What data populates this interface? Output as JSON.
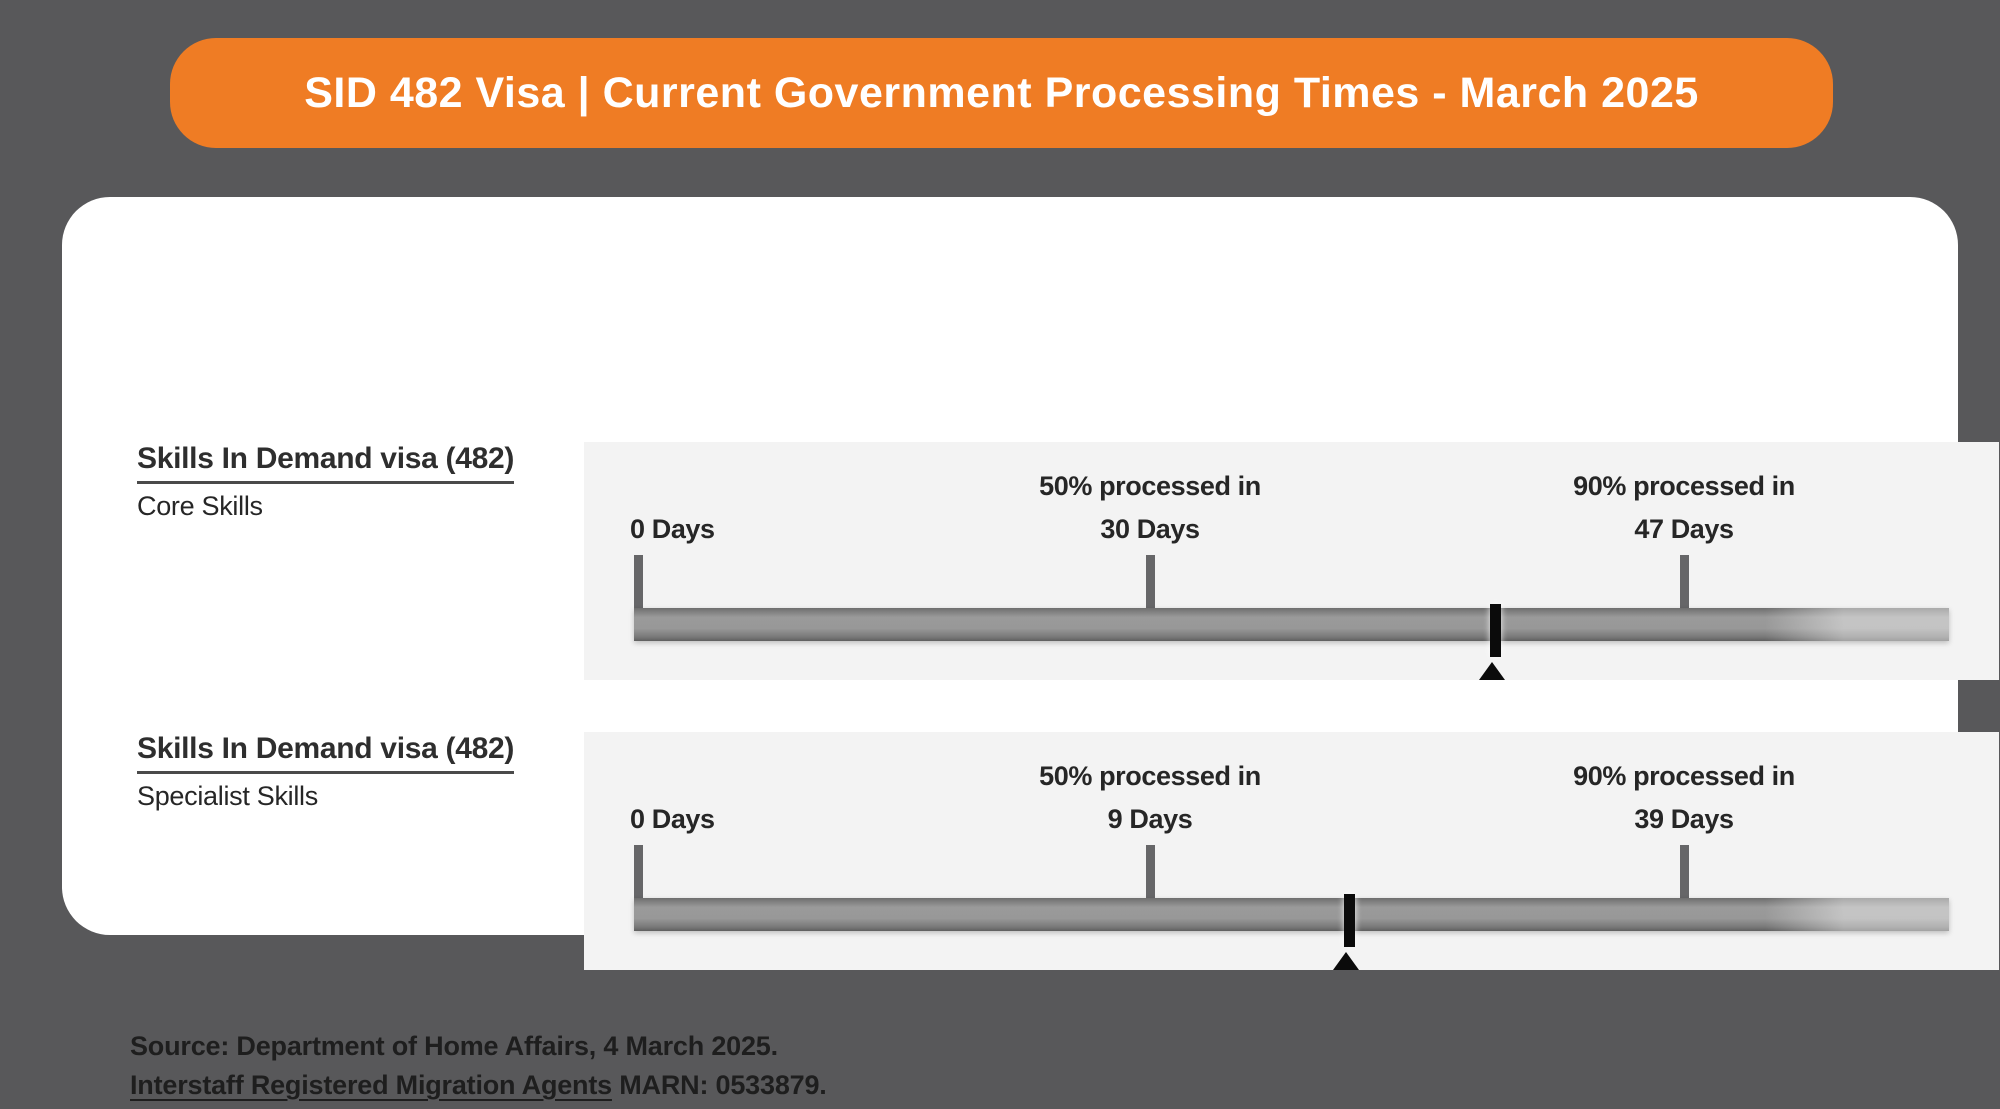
{
  "page": {
    "background_color": "#58585A",
    "accent_color": "#EF7C24",
    "panel_color": "#F3F3F3"
  },
  "banner": {
    "title": "SID 482 Visa | Current Government Processing Times - March 2025"
  },
  "rows": [
    {
      "title": "Skills In Demand visa (482)",
      "subtitle": "Core Skills",
      "start_label": "0 Days",
      "p50_line1": "50% processed in",
      "p50_line2": "30 Days",
      "p90_line1": "90% processed in",
      "p90_line2": "47 Days"
    },
    {
      "title": "Skills In Demand visa (482)",
      "subtitle": "Specialist Skills",
      "start_label": "0 Days",
      "p50_line1": "50% processed in",
      "p50_line2": "9 Days",
      "p90_line1": "90% processed in",
      "p90_line2": "39 Days"
    }
  ],
  "footer": {
    "source_line": "Source: Department of Home Affairs, 4 March 2025.",
    "agents_link": "Interstaff Registered Migration Agents",
    "marn_text": " MARN: 0533879."
  },
  "chart_data": [
    {
      "type": "line",
      "style": "timeline",
      "title": "Skills In Demand visa (482) - Core Skills",
      "xlabel": "Days",
      "x_range": [
        0,
        47
      ],
      "points": [
        {
          "x": 0,
          "label": "0 Days"
        },
        {
          "x": 30,
          "label": "50% processed in 30 Days"
        },
        {
          "x": 47,
          "label": "90% processed in 47 Days"
        }
      ]
    },
    {
      "type": "line",
      "style": "timeline",
      "title": "Skills In Demand visa (482) - Specialist Skills",
      "xlabel": "Days",
      "x_range": [
        0,
        39
      ],
      "points": [
        {
          "x": 0,
          "label": "0 Days"
        },
        {
          "x": 9,
          "label": "50% processed in 9 Days"
        },
        {
          "x": 39,
          "label": "90% processed in 39 Days"
        }
      ]
    }
  ]
}
